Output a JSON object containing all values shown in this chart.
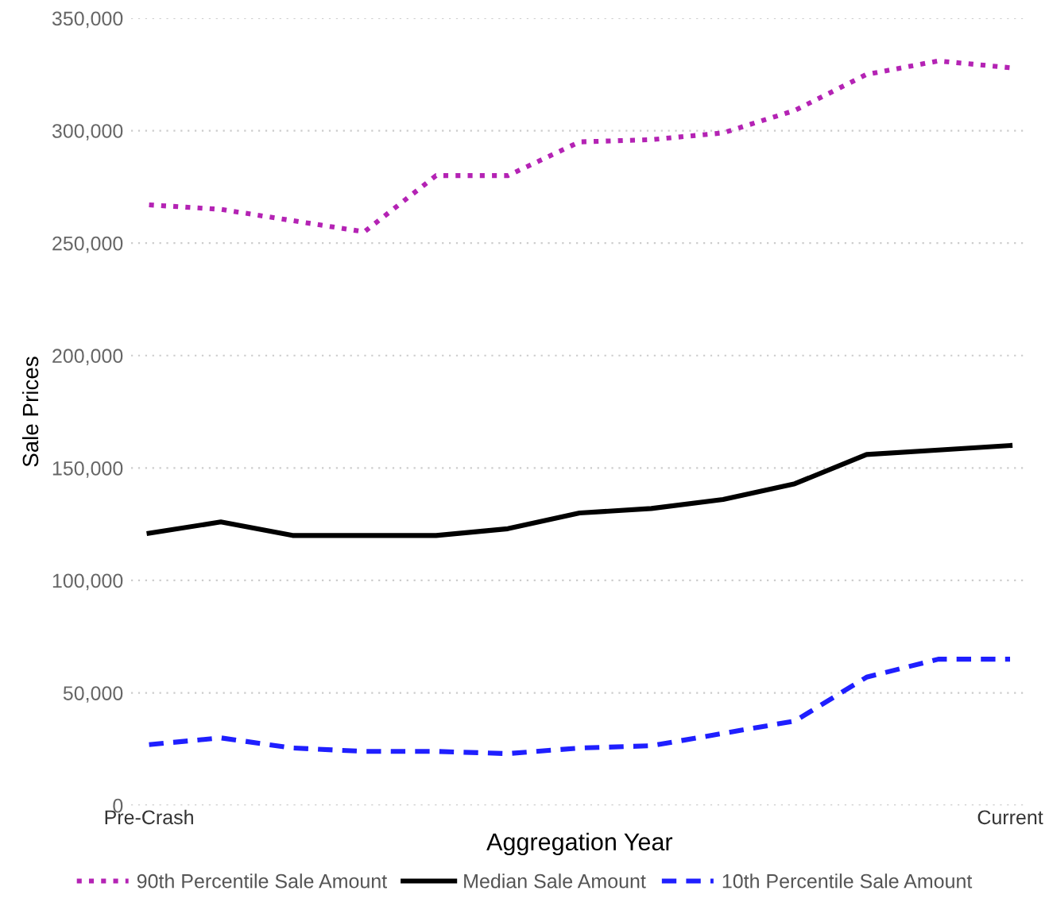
{
  "chart_data": {
    "type": "line",
    "xlabel": "Aggregation Year",
    "ylabel": "Sale Prices",
    "categories": [
      "Pre-Crash",
      null,
      null,
      null,
      null,
      null,
      null,
      null,
      null,
      null,
      null,
      null,
      "Current"
    ],
    "series": [
      {
        "name": "90th Percentile Sale Amount",
        "color": "#b423b4",
        "line_style": "dotted",
        "values": [
          267000,
          265000,
          260000,
          255000,
          280000,
          280000,
          295000,
          296000,
          299000,
          309000,
          325000,
          331000,
          328000
        ]
      },
      {
        "name": "Median Sale Amount",
        "color": "#000000",
        "line_style": "solid",
        "values": [
          121000,
          126000,
          120000,
          120000,
          120000,
          123000,
          130000,
          132000,
          136000,
          143000,
          156000,
          158000,
          160000
        ]
      },
      {
        "name": "10th Percentile Sale Amount",
        "color": "#1f1fff",
        "line_style": "dashed",
        "values": [
          27000,
          30000,
          25500,
          24000,
          24000,
          23000,
          25500,
          26500,
          32000,
          37500,
          57000,
          65000,
          65000
        ]
      }
    ],
    "ylim": [
      0,
      350000
    ],
    "yticks": [
      {
        "value": 0,
        "label": "0"
      },
      {
        "value": 50000,
        "label": "50,000"
      },
      {
        "value": 100000,
        "label": "100,000"
      },
      {
        "value": 150000,
        "label": "150,000"
      },
      {
        "value": 200000,
        "label": "200,000"
      },
      {
        "value": 250000,
        "label": "250,000"
      },
      {
        "value": 300000,
        "label": "300,000"
      },
      {
        "value": 350000,
        "label": "350,000"
      }
    ],
    "grid": "y",
    "legend": "bottom",
    "marker": "none"
  }
}
